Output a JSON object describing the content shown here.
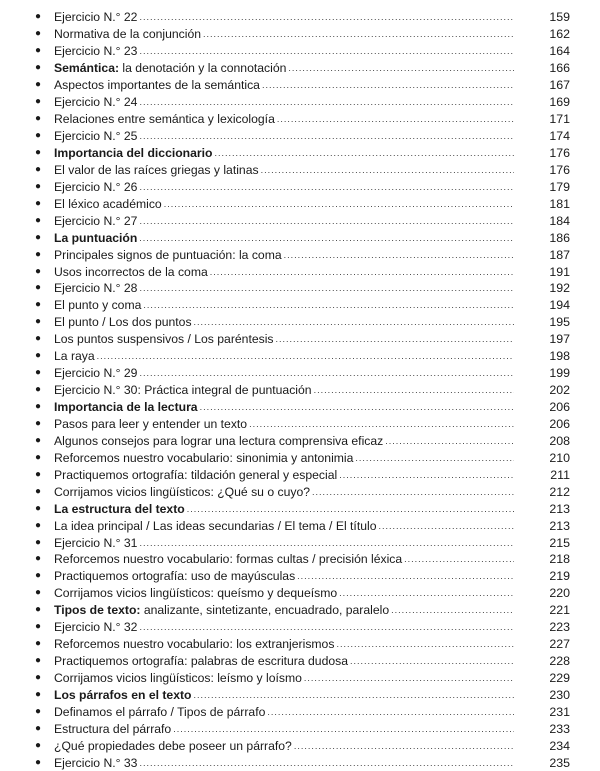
{
  "toc": [
    {
      "bold": "",
      "text": "Ejercicio N.° 22",
      "page": "159"
    },
    {
      "bold": "",
      "text": "Normativa de la conjunción",
      "page": "162"
    },
    {
      "bold": "",
      "text": "Ejercicio N.° 23",
      "page": "164"
    },
    {
      "bold": "Semántica:",
      "text": " la denotación y la connotación",
      "page": "166"
    },
    {
      "bold": "",
      "text": "Aspectos importantes de la semántica",
      "page": "167"
    },
    {
      "bold": "",
      "text": "Ejercicio N.° 24",
      "page": "169"
    },
    {
      "bold": "",
      "text": "Relaciones entre semántica y lexicología",
      "page": "171"
    },
    {
      "bold": "",
      "text": "Ejercicio N.° 25",
      "page": "174"
    },
    {
      "bold": "Importancia del diccionario",
      "text": "",
      "page": "176"
    },
    {
      "bold": "",
      "text": "El valor de las raíces griegas y latinas",
      "page": "176"
    },
    {
      "bold": "",
      "text": "Ejercicio N.° 26",
      "page": "179"
    },
    {
      "bold": "",
      "text": "El léxico académico",
      "page": "181"
    },
    {
      "bold": "",
      "text": "Ejercicio N.° 27",
      "page": "184"
    },
    {
      "bold": "La puntuación",
      "text": "",
      "page": "186"
    },
    {
      "bold": "",
      "text": "Principales signos de puntuación: la coma",
      "page": "187"
    },
    {
      "bold": "",
      "text": "Usos incorrectos de la coma",
      "page": "191"
    },
    {
      "bold": "",
      "text": "Ejercicio N.° 28",
      "page": "192"
    },
    {
      "bold": "",
      "text": "El punto y coma",
      "page": "194"
    },
    {
      "bold": "",
      "text": "El punto / Los dos puntos",
      "page": "195"
    },
    {
      "bold": "",
      "text": "Los puntos suspensivos / Los paréntesis",
      "page": "197"
    },
    {
      "bold": "",
      "text": "La raya",
      "page": "198"
    },
    {
      "bold": "",
      "text": "Ejercicio N.° 29",
      "page": "199"
    },
    {
      "bold": "",
      "text": "Ejercicio N.° 30: Práctica integral de puntuación",
      "page": "202"
    },
    {
      "bold": "Importancia de la lectura",
      "text": "",
      "page": "206"
    },
    {
      "bold": "",
      "text": "Pasos para leer y entender un texto",
      "page": "206"
    },
    {
      "bold": "",
      "text": "Algunos consejos para lograr una lectura comprensiva eficaz",
      "page": "208"
    },
    {
      "bold": "",
      "text": "Reforcemos nuestro vocabulario: sinonimia y antonimia",
      "page": "210"
    },
    {
      "bold": "",
      "text": "Practiquemos ortografía: tildación general y especial",
      "page": "211"
    },
    {
      "bold": "",
      "text": "Corrijamos vicios lingüísticos: ¿Qué su o cuyo?",
      "page": "212"
    },
    {
      "bold": "La estructura del texto",
      "text": "",
      "page": "213"
    },
    {
      "bold": "",
      "text": "La idea principal / Las ideas secundarias / El tema / El título",
      "page": "213"
    },
    {
      "bold": "",
      "text": "Ejercicio N.° 31",
      "page": "215"
    },
    {
      "bold": "",
      "text": "Reforcemos nuestro vocabulario: formas cultas / precisión léxica",
      "page": "218"
    },
    {
      "bold": "",
      "text": "Practiquemos ortografía: uso de mayúsculas",
      "page": "219"
    },
    {
      "bold": "",
      "text": "Corrijamos vicios lingüísticos: queísmo y dequeísmo",
      "page": "220"
    },
    {
      "bold": "Tipos de texto:",
      "text": " analizante, sintetizante, encuadrado, paralelo",
      "page": "221"
    },
    {
      "bold": "",
      "text": "Ejercicio N.° 32",
      "page": "223"
    },
    {
      "bold": "",
      "text": "Reforcemos nuestro vocabulario: los extranjerismos",
      "page": "227"
    },
    {
      "bold": "",
      "text": "Practiquemos ortografía: palabras de escritura dudosa",
      "page": "228"
    },
    {
      "bold": "",
      "text": "Corrijamos vicios lingüísticos: leísmo y loísmo",
      "page": "229"
    },
    {
      "bold": "Los párrafos en el texto",
      "text": "",
      "page": "230"
    },
    {
      "bold": "",
      "text": "Definamos el párrafo / Tipos de párrafo",
      "page": "231"
    },
    {
      "bold": "",
      "text": "Estructura del párrafo",
      "page": "233"
    },
    {
      "bold": "",
      "text": "¿Qué propiedades debe poseer un párrafo?",
      "page": "234"
    },
    {
      "bold": "",
      "text": "Ejercicio N.° 33",
      "page": "235"
    }
  ]
}
